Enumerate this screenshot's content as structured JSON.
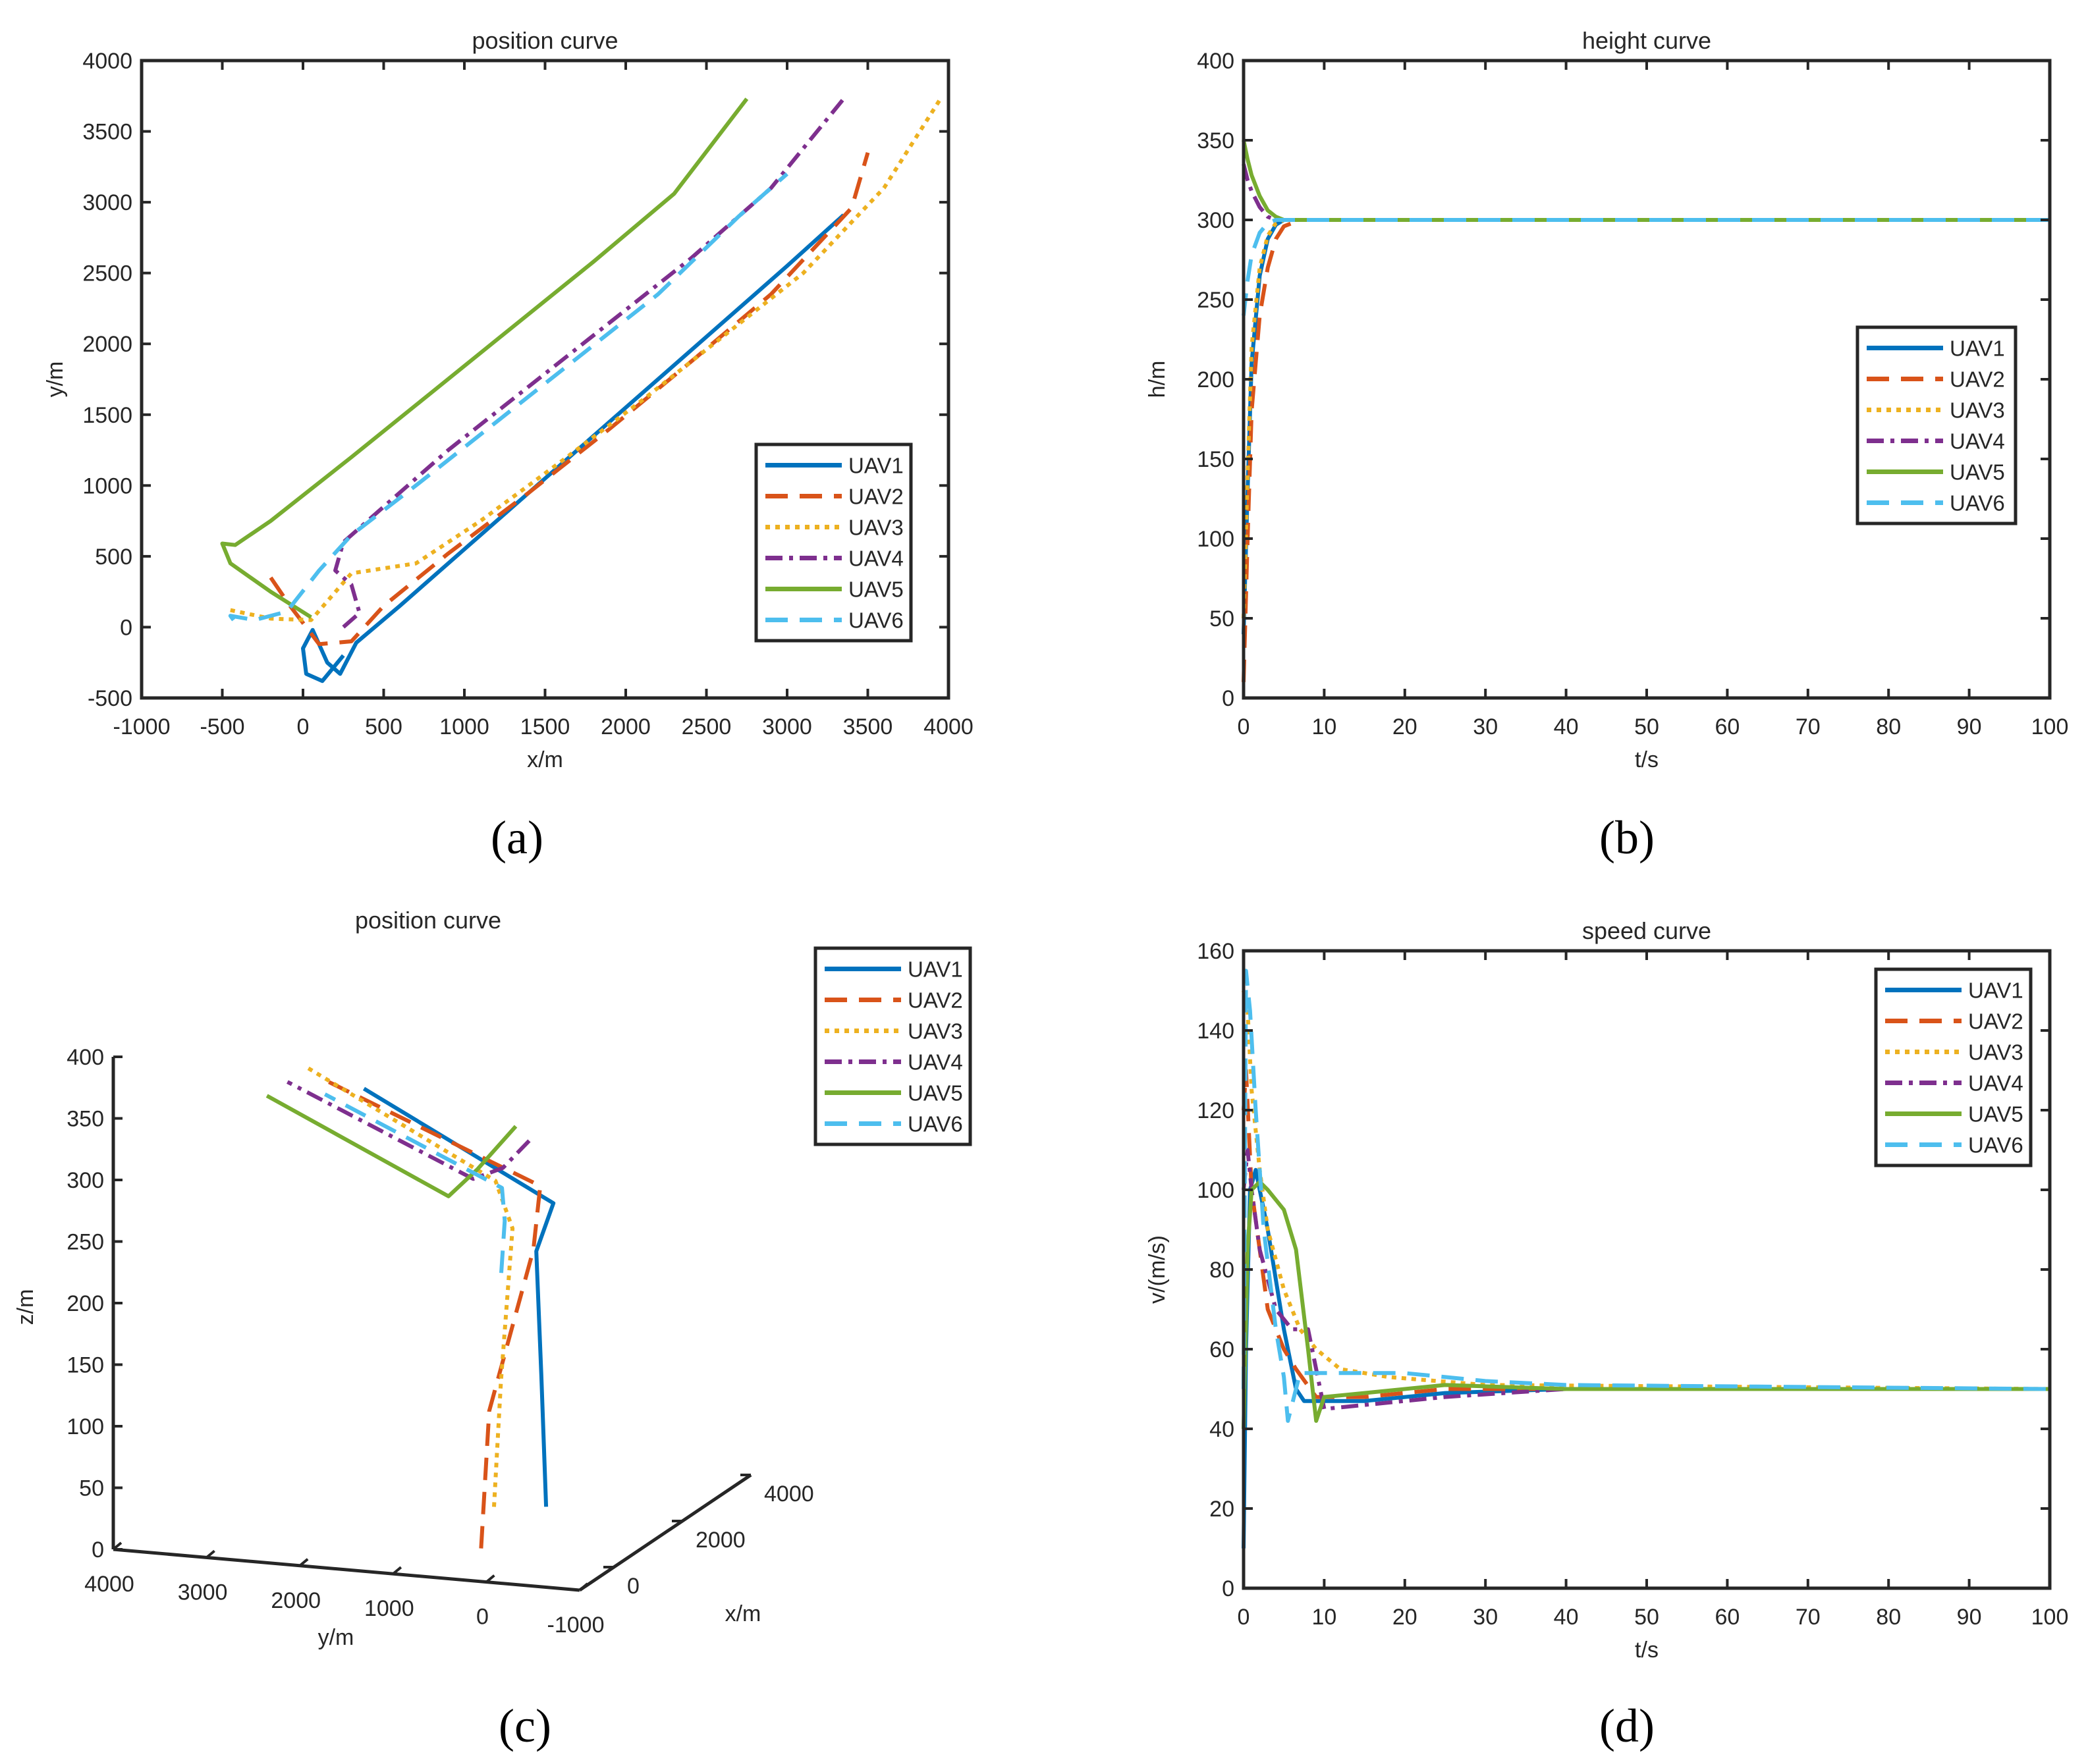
{
  "colors": {
    "UAV1": "#0072BD",
    "UAV2": "#D95319",
    "UAV3": "#EDB120",
    "UAV4": "#7E2F8E",
    "UAV5": "#77AC30",
    "UAV6": "#4DBEEE",
    "axes": "#262626"
  },
  "legend": {
    "entries": [
      "UAV1",
      "UAV2",
      "UAV3",
      "UAV4",
      "UAV5",
      "UAV6"
    ],
    "line_styles": [
      "solid",
      "dashed",
      "dotted",
      "dashdot",
      "solid",
      "dashed"
    ]
  },
  "chart_data": [
    {
      "panel": "(a)",
      "type": "line",
      "title": "position curve",
      "xlabel": "x/m",
      "ylabel": "y/m",
      "xlim": [
        -1000,
        4000
      ],
      "ylim": [
        -500,
        4000
      ],
      "xticks": [
        -1000,
        -500,
        0,
        500,
        1000,
        1500,
        2000,
        2500,
        3000,
        3500,
        4000
      ],
      "yticks": [
        -500,
        0,
        500,
        1000,
        1500,
        2000,
        2500,
        3000,
        3500,
        4000
      ],
      "legend_position": "lower-right",
      "grid": false,
      "series": [
        {
          "name": "UAV1",
          "x": [
            250,
            120,
            20,
            0,
            60,
            150,
            230,
            330,
            600,
            1000,
            1500,
            2000,
            2500,
            3000,
            3350
          ],
          "y": [
            -200,
            -380,
            -330,
            -150,
            -20,
            -250,
            -330,
            -110,
            150,
            550,
            1050,
            1550,
            2050,
            2550,
            2910
          ]
        },
        {
          "name": "UAV2",
          "x": [
            -200,
            -80,
            100,
            300,
            500,
            900,
            1400,
            1900,
            2400,
            2900,
            3400,
            3500
          ],
          "y": [
            350,
            150,
            -120,
            -100,
            150,
            520,
            950,
            1400,
            1870,
            2350,
            2960,
            3350
          ]
        },
        {
          "name": "UAV3",
          "x": [
            -450,
            -200,
            50,
            300,
            700,
            1100,
            1600,
            2100,
            2600,
            3100,
            3600,
            3950
          ],
          "y": [
            120,
            60,
            50,
            380,
            450,
            750,
            1170,
            1600,
            2050,
            2500,
            3100,
            3730
          ]
        },
        {
          "name": "UAV4",
          "x": [
            250,
            350,
            300,
            200,
            250,
            500,
            900,
            1400,
            1900,
            2400,
            2900,
            3350
          ],
          "y": [
            0,
            100,
            300,
            400,
            600,
            850,
            1250,
            1700,
            2150,
            2600,
            3100,
            3730
          ]
        },
        {
          "name": "UAV5",
          "x": [
            50,
            -200,
            -450,
            -500,
            -420,
            -200,
            300,
            800,
            1300,
            1800,
            2300,
            2750
          ],
          "y": [
            70,
            250,
            450,
            590,
            580,
            750,
            1200,
            1660,
            2120,
            2580,
            3060,
            3730
          ]
        },
        {
          "name": "UAV6",
          "x": [
            -430,
            -450,
            -300,
            -100,
            100,
            300,
            700,
            1200,
            1700,
            2200,
            2700,
            3000
          ],
          "y": [
            50,
            80,
            50,
            110,
            400,
            650,
            1000,
            1450,
            1900,
            2350,
            2900,
            3200
          ]
        }
      ]
    },
    {
      "panel": "(b)",
      "type": "line",
      "title": "height curve",
      "xlabel": "t/s",
      "ylabel": "h/m",
      "xlim": [
        0,
        100
      ],
      "ylim": [
        0,
        400
      ],
      "xticks": [
        0,
        10,
        20,
        30,
        40,
        50,
        60,
        70,
        80,
        90,
        100
      ],
      "yticks": [
        0,
        50,
        100,
        150,
        200,
        250,
        300,
        350,
        400
      ],
      "legend_position": "right",
      "grid": false,
      "series": [
        {
          "name": "UAV1",
          "x": [
            0,
            0.5,
            1,
            2,
            3,
            4,
            5,
            6,
            100
          ],
          "y": [
            40,
            130,
            210,
            265,
            288,
            297,
            300,
            300,
            300
          ]
        },
        {
          "name": "UAV2",
          "x": [
            0,
            0.5,
            1,
            2,
            3,
            4,
            5,
            7,
            100
          ],
          "y": [
            10,
            100,
            180,
            240,
            270,
            288,
            296,
            300,
            300
          ]
        },
        {
          "name": "UAV3",
          "x": [
            0,
            0.5,
            1,
            2,
            3,
            4,
            5,
            6,
            100
          ],
          "y": [
            50,
            140,
            220,
            270,
            290,
            298,
            300,
            300,
            300
          ]
        },
        {
          "name": "UAV4",
          "x": [
            0,
            0.5,
            1,
            2,
            3,
            4,
            100
          ],
          "y": [
            335,
            325,
            318,
            308,
            302,
            300,
            300
          ]
        },
        {
          "name": "UAV5",
          "x": [
            0,
            0.5,
            1,
            2,
            3,
            4,
            5,
            6,
            100
          ],
          "y": [
            350,
            338,
            328,
            315,
            306,
            302,
            300,
            300,
            300
          ]
        },
        {
          "name": "UAV6",
          "x": [
            0,
            0.5,
            1,
            2,
            3,
            4,
            100
          ],
          "y": [
            240,
            262,
            278,
            292,
            298,
            300,
            300
          ]
        }
      ]
    },
    {
      "panel": "(c)",
      "type": "line",
      "title": "position curve",
      "xlabel": "x/m",
      "ylabel": "y/m",
      "zlabel": "z/m",
      "xticks": [
        0,
        2000,
        4000
      ],
      "yticks": [
        4000,
        3000,
        2000,
        1000,
        0,
        -1000
      ],
      "zticks": [
        0,
        50,
        100,
        150,
        200,
        250,
        300,
        350,
        400
      ],
      "legend_position": "top-right",
      "grid": false,
      "series": [
        {
          "name": "UAV1",
          "x": [
            200,
            60,
            50,
            60,
            3350
          ],
          "y": [
            -200,
            -200,
            -150,
            -330,
            2910
          ],
          "z": [
            40,
            150,
            250,
            290,
            300
          ]
        },
        {
          "name": "UAV2",
          "x": [
            -200,
            -100,
            100,
            300,
            3500
          ],
          "y": [
            350,
            300,
            -100,
            -100,
            3350
          ],
          "z": [
            10,
            120,
            250,
            298,
            300
          ]
        },
        {
          "name": "UAV3",
          "x": [
            -450,
            -300,
            -100,
            300,
            3950
          ],
          "y": [
            120,
            100,
            50,
            380,
            3730
          ],
          "z": [
            50,
            150,
            270,
            299,
            300
          ]
        },
        {
          "name": "UAV4",
          "x": [
            250,
            300,
            250,
            3350
          ],
          "y": [
            0,
            300,
            600,
            3730
          ],
          "z": [
            335,
            310,
            300,
            300
          ]
        },
        {
          "name": "UAV5",
          "x": [
            50,
            -300,
            -500,
            2750
          ],
          "y": [
            70,
            350,
            590,
            3730
          ],
          "z": [
            350,
            320,
            300,
            300
          ]
        },
        {
          "name": "UAV6",
          "x": [
            -430,
            -300,
            0,
            3000
          ],
          "y": [
            50,
            60,
            200,
            3200
          ],
          "z": [
            240,
            280,
            300,
            300
          ]
        }
      ]
    },
    {
      "panel": "(d)",
      "type": "line",
      "title": "speed curve",
      "xlabel": "t/s",
      "ylabel": "v/(m/s)",
      "xlim": [
        0,
        100
      ],
      "ylim": [
        0,
        160
      ],
      "xticks": [
        0,
        10,
        20,
        30,
        40,
        50,
        60,
        70,
        80,
        90,
        100
      ],
      "yticks": [
        0,
        20,
        40,
        60,
        80,
        100,
        120,
        140,
        160
      ],
      "legend_position": "top-right",
      "grid": false,
      "series": [
        {
          "name": "UAV1",
          "x": [
            0,
            0.3,
            0.8,
            1.5,
            3,
            5,
            6.5,
            7.5,
            10,
            15,
            25,
            40,
            100
          ],
          "y": [
            10,
            60,
            100,
            105,
            90,
            65,
            50,
            47,
            47,
            47,
            49,
            50,
            50
          ]
        },
        {
          "name": "UAV2",
          "x": [
            0,
            0.3,
            1,
            2,
            3,
            5,
            6.5,
            9,
            15,
            25,
            40,
            100
          ],
          "y": [
            120,
            130,
            100,
            85,
            70,
            60,
            55,
            48,
            48,
            50,
            50,
            50
          ]
        },
        {
          "name": "UAV3",
          "x": [
            0,
            0.5,
            1,
            2,
            3,
            5,
            7,
            9,
            12,
            18,
            30,
            100
          ],
          "y": [
            150,
            145,
            125,
            105,
            90,
            75,
            65,
            60,
            55,
            53,
            51,
            50
          ]
        },
        {
          "name": "UAV4",
          "x": [
            0,
            0.5,
            1,
            2,
            4,
            6,
            8,
            9,
            10,
            15,
            25,
            40,
            100
          ],
          "y": [
            100,
            110,
            100,
            85,
            70,
            65,
            65,
            55,
            45,
            46,
            48,
            50,
            50
          ]
        },
        {
          "name": "UAV5",
          "x": [
            0,
            0.5,
            1,
            2,
            3,
            5,
            6.5,
            8,
            9,
            10,
            15,
            25,
            40,
            100
          ],
          "y": [
            40,
            85,
            100,
            102,
            100,
            95,
            85,
            60,
            42,
            48,
            49,
            51,
            50,
            50
          ]
        },
        {
          "name": "UAV6",
          "x": [
            0,
            0.3,
            0.8,
            1.5,
            2.5,
            4,
            5,
            5.5,
            7,
            10,
            20,
            30,
            40,
            100
          ],
          "y": [
            50,
            155,
            145,
            120,
            90,
            65,
            53,
            42,
            54,
            54,
            54,
            52,
            51,
            50
          ]
        }
      ]
    }
  ],
  "panel_labels": [
    "(a)",
    "(b)",
    "(c)",
    "(d)"
  ]
}
